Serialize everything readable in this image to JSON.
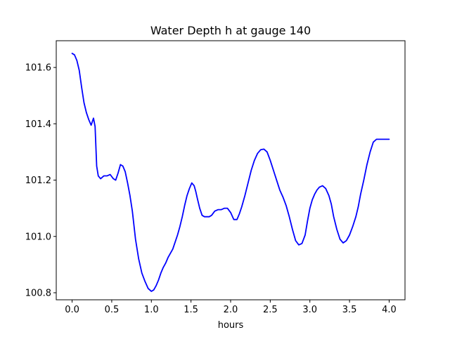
{
  "chart_data": {
    "type": "line",
    "title": "Water Depth h at gauge 140",
    "xlabel": "hours",
    "ylabel": "",
    "xlim": [
      -0.2,
      4.2
    ],
    "ylim": [
      100.775,
      101.695
    ],
    "xticks": [
      0.0,
      0.5,
      1.0,
      1.5,
      2.0,
      2.5,
      3.0,
      3.5,
      4.0
    ],
    "xtick_labels": [
      "0.0",
      "0.5",
      "1.0",
      "1.5",
      "2.0",
      "2.5",
      "3.0",
      "3.5",
      "4.0"
    ],
    "yticks": [
      100.8,
      101.0,
      101.2,
      101.4,
      101.6
    ],
    "ytick_labels": [
      "100.8",
      "101.0",
      "101.2",
      "101.4",
      "101.6"
    ],
    "grid": false,
    "series": [
      {
        "color": "#0000ff",
        "x": [
          0.0,
          0.03,
          0.06,
          0.09,
          0.12,
          0.15,
          0.18,
          0.21,
          0.24,
          0.27,
          0.29,
          0.31,
          0.33,
          0.36,
          0.4,
          0.44,
          0.48,
          0.52,
          0.55,
          0.58,
          0.61,
          0.64,
          0.67,
          0.7,
          0.73,
          0.76,
          0.8,
          0.84,
          0.88,
          0.92,
          0.96,
          1.0,
          1.03,
          1.06,
          1.09,
          1.12,
          1.15,
          1.18,
          1.21,
          1.24,
          1.27,
          1.3,
          1.33,
          1.36,
          1.39,
          1.42,
          1.45,
          1.48,
          1.51,
          1.54,
          1.56,
          1.58,
          1.61,
          1.64,
          1.67,
          1.7,
          1.73,
          1.76,
          1.8,
          1.84,
          1.88,
          1.92,
          1.96,
          2.0,
          2.04,
          2.08,
          2.11,
          2.14,
          2.18,
          2.22,
          2.26,
          2.3,
          2.34,
          2.38,
          2.42,
          2.46,
          2.5,
          2.54,
          2.58,
          2.62,
          2.66,
          2.7,
          2.74,
          2.78,
          2.82,
          2.86,
          2.9,
          2.94,
          2.97,
          3.0,
          3.03,
          3.06,
          3.09,
          3.12,
          3.16,
          3.2,
          3.24,
          3.27,
          3.3,
          3.34,
          3.38,
          3.42,
          3.46,
          3.5,
          3.54,
          3.58,
          3.61,
          3.64,
          3.68,
          3.72,
          3.76,
          3.8,
          3.84,
          3.88,
          3.92,
          3.96,
          4.0
        ],
        "y": [
          101.65,
          101.645,
          101.625,
          101.59,
          101.53,
          101.475,
          101.44,
          101.415,
          101.395,
          101.42,
          101.39,
          101.25,
          101.215,
          101.205,
          101.215,
          101.215,
          101.22,
          101.205,
          101.2,
          101.225,
          101.255,
          101.25,
          101.23,
          101.19,
          101.145,
          101.09,
          100.99,
          100.92,
          100.87,
          100.84,
          100.815,
          100.805,
          100.81,
          100.825,
          100.845,
          100.87,
          100.89,
          100.905,
          100.925,
          100.94,
          100.955,
          100.98,
          101.005,
          101.035,
          101.07,
          101.11,
          101.145,
          101.17,
          101.19,
          101.18,
          101.16,
          101.135,
          101.1,
          101.075,
          101.07,
          101.07,
          101.07,
          101.075,
          101.09,
          101.095,
          101.095,
          101.1,
          101.1,
          101.085,
          101.06,
          101.06,
          101.08,
          101.105,
          101.145,
          101.19,
          101.235,
          101.27,
          101.295,
          101.308,
          101.31,
          101.3,
          101.27,
          101.235,
          101.2,
          101.165,
          101.14,
          101.11,
          101.07,
          101.025,
          100.985,
          100.97,
          100.975,
          101.005,
          101.055,
          101.1,
          101.13,
          101.15,
          101.165,
          101.175,
          101.18,
          101.17,
          101.145,
          101.115,
          101.07,
          101.025,
          100.99,
          100.977,
          100.985,
          101.005,
          101.035,
          101.07,
          101.105,
          101.15,
          101.2,
          101.255,
          101.3,
          101.335,
          101.345,
          101.345,
          101.345,
          101.345,
          101.345
        ]
      }
    ]
  }
}
